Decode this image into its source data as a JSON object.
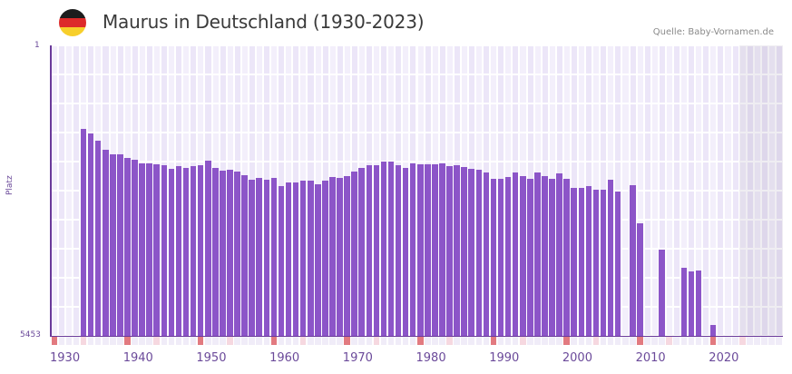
{
  "header": {
    "title": "Maurus in Deutschland (1930-2023)",
    "source": "Quelle: Baby-Vornamen.de",
    "flag_colors": [
      "#1d1d1d",
      "#dd2a2a",
      "#f7cf2b"
    ]
  },
  "colors": {
    "bar": "#8c55c8",
    "axis": "#6a3a9a",
    "grid_a": "#f3effb",
    "grid_b": "#ece6f8",
    "decade_marker": "#e27a80",
    "half_decade_marker": "#f6d8e0",
    "year_marker": "#f0ecf8"
  },
  "chart_data": {
    "type": "bar",
    "title": "Maurus in Deutschland (1930-2023)",
    "xlabel": "",
    "ylabel": "Platz",
    "y_inverted": true,
    "ylim": [
      1,
      5453
    ],
    "xlim": [
      1930,
      2029
    ],
    "x_tick_labels": [
      "1930",
      "1940",
      "1950",
      "1960",
      "1970",
      "1980",
      "1990",
      "2000",
      "2010",
      "2020"
    ],
    "y_tick_labels": [
      "1",
      "5453"
    ],
    "grid": true,
    "legend": null,
    "source": "Quelle: Baby-Vornamen.de",
    "x": [
      1934,
      1935,
      1936,
      1937,
      1938,
      1939,
      1940,
      1941,
      1942,
      1943,
      1944,
      1945,
      1946,
      1947,
      1948,
      1949,
      1950,
      1951,
      1952,
      1953,
      1954,
      1955,
      1956,
      1957,
      1958,
      1959,
      1960,
      1961,
      1962,
      1963,
      1964,
      1965,
      1966,
      1967,
      1968,
      1969,
      1970,
      1971,
      1972,
      1973,
      1974,
      1975,
      1976,
      1977,
      1978,
      1979,
      1980,
      1981,
      1982,
      1983,
      1984,
      1985,
      1986,
      1987,
      1988,
      1989,
      1990,
      1991,
      1992,
      1993,
      1994,
      1995,
      1996,
      1997,
      1998,
      1999,
      2000,
      2001,
      2002,
      2003,
      2004,
      2005,
      2006,
      2007,
      2009,
      2010,
      2013,
      2016,
      2017,
      2018,
      2020
    ],
    "values": [
      1567,
      1652,
      1788,
      1959,
      2044,
      2044,
      2112,
      2146,
      2214,
      2214,
      2231,
      2248,
      2316,
      2265,
      2299,
      2265,
      2248,
      2163,
      2299,
      2350,
      2333,
      2367,
      2435,
      2520,
      2486,
      2520,
      2486,
      2640,
      2572,
      2572,
      2538,
      2538,
      2606,
      2538,
      2470,
      2486,
      2452,
      2367,
      2299,
      2248,
      2248,
      2180,
      2180,
      2248,
      2299,
      2214,
      2231,
      2231,
      2231,
      2214,
      2265,
      2248,
      2282,
      2316,
      2333,
      2384,
      2503,
      2503,
      2470,
      2384,
      2452,
      2503,
      2384,
      2452,
      2503,
      2401,
      2503,
      2674,
      2674,
      2640,
      2708,
      2708,
      2520,
      2742,
      2623,
      3339,
      3833,
      4174,
      4242,
      4225,
      5247
    ]
  },
  "axis": {
    "y_top": "1",
    "y_bottom": "5453",
    "y_title": "Platz",
    "x_ticks": [
      {
        "label": "1930",
        "year": 1930
      },
      {
        "label": "1940",
        "year": 1940
      },
      {
        "label": "1950",
        "year": 1950
      },
      {
        "label": "1960",
        "year": 1960
      },
      {
        "label": "1970",
        "year": 1970
      },
      {
        "label": "1980",
        "year": 1980
      },
      {
        "label": "1990",
        "year": 1990
      },
      {
        "label": "2000",
        "year": 2000
      },
      {
        "label": "2010",
        "year": 2010
      },
      {
        "label": "2020",
        "year": 2020
      }
    ]
  }
}
